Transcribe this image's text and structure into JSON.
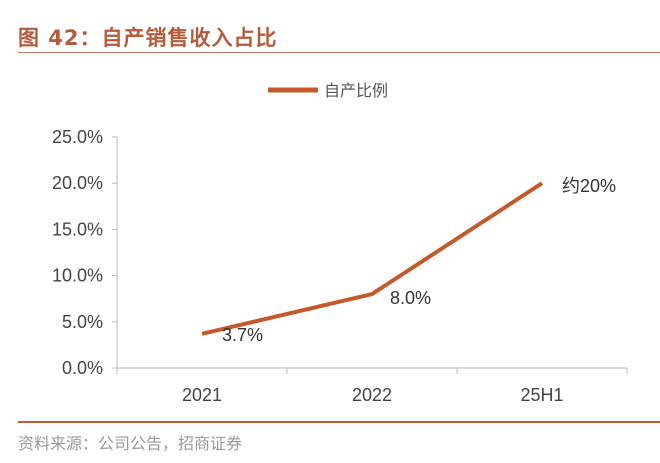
{
  "title": "图 42：自产销售收入占比",
  "source": "资料来源：公司公告，招商证券",
  "chart_data": {
    "type": "line",
    "title": "图 42：自产销售收入占比",
    "categories": [
      "2021",
      "2022",
      "25H1"
    ],
    "series": [
      {
        "name": "自产比例",
        "values": [
          3.7,
          8.0,
          20.0
        ],
        "color": "#c55a28"
      }
    ],
    "data_labels": [
      "3.7%",
      "8.0%",
      "约20%"
    ],
    "ylim": [
      0,
      25
    ],
    "yticks": [
      "0.0%",
      "5.0%",
      "10.0%",
      "15.0%",
      "20.0%",
      "25.0%"
    ],
    "grid": false,
    "legend": "top-center"
  }
}
